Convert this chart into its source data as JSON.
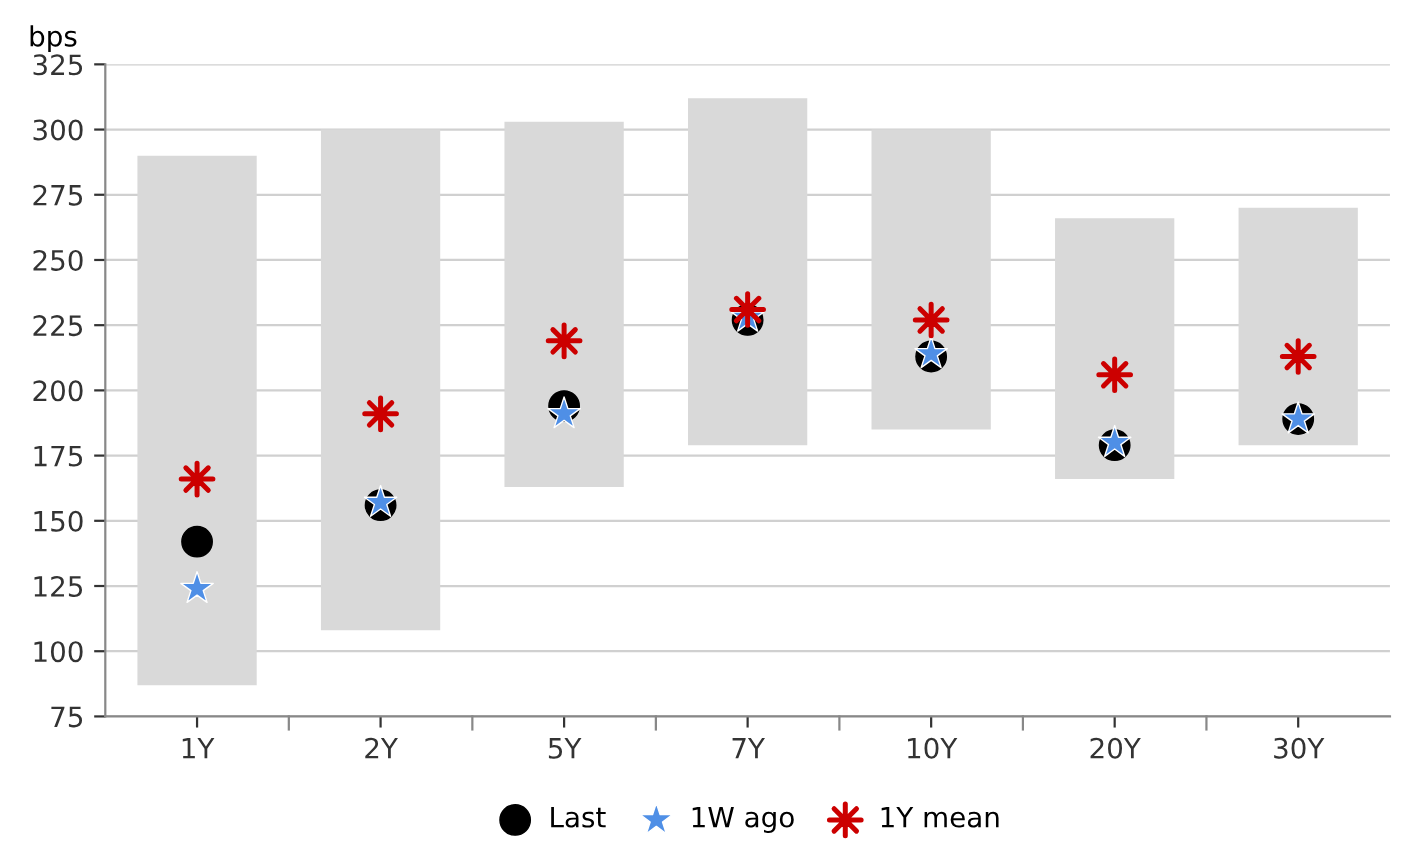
{
  "chart_data": {
    "type": "bar",
    "ylabel": "bps",
    "categories": [
      "1Y",
      "2Y",
      "5Y",
      "7Y",
      "10Y",
      "20Y",
      "30Y"
    ],
    "series": [
      {
        "color": "#d9d9d9",
        "base": [
          87,
          108,
          163,
          179,
          185,
          166,
          179
        ],
        "values": [
          203,
          192,
          140,
          133,
          115,
          100,
          91
        ]
      },
      {
        "type": "scatter",
        "name": "Last",
        "color": "#000000",
        "marker": "circle",
        "values": [
          142,
          156,
          194,
          227,
          213,
          179,
          189
        ]
      },
      {
        "type": "scatter",
        "name": "1W ago",
        "color": "#4f8fe6",
        "marker": "star",
        "values": [
          124,
          157,
          191,
          228,
          214,
          180,
          189
        ]
      },
      {
        "type": "scatter",
        "name": "1Y mean",
        "color": "#cc0000",
        "marker": "cross",
        "values": [
          166,
          191,
          219,
          231,
          227,
          206,
          213
        ]
      }
    ],
    "ylim": [
      75,
      325
    ],
    "yticks": [
      75,
      100,
      125,
      150,
      175,
      200,
      225,
      250,
      275,
      300,
      325
    ],
    "grid": "y",
    "legend": "bottom"
  }
}
